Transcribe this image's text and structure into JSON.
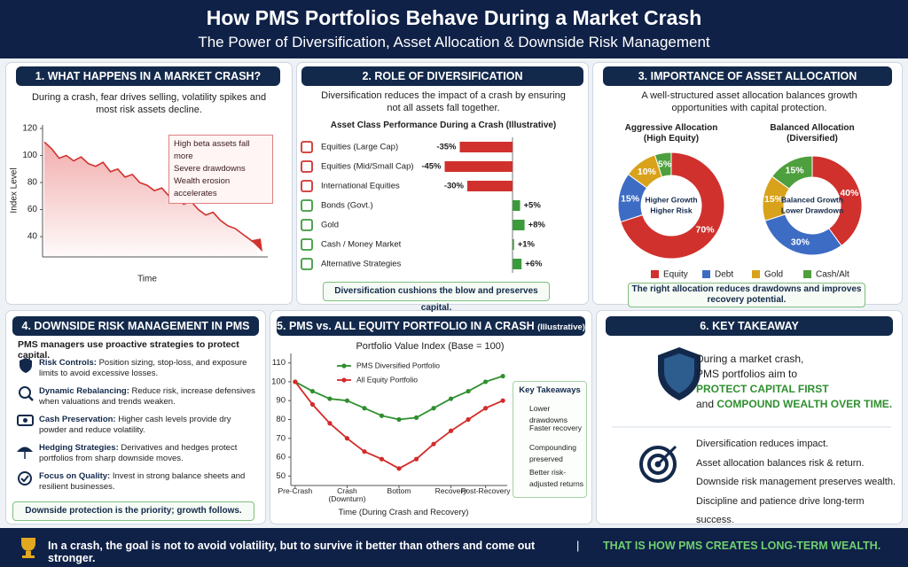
{
  "header": {
    "title": "How PMS Portfolios Behave During a Market Crash",
    "subtitle": "The Power of Diversification, Asset Allocation & Downside Risk Management"
  },
  "panels": [
    {
      "heading": "1. WHAT HAPPENS IN A MARKET CRASH?",
      "text": "During a crash, fear drives selling, volatility spikes and most risk assets decline.",
      "callout": [
        "High beta assets fall more",
        "Severe drawdowns",
        "Wealth erosion accelerates"
      ]
    },
    {
      "heading": "2. ROLE OF DIVERSIFICATION",
      "text": "Diversification reduces the impact of a crash by ensuring not all assets fall together.",
      "footer": "Diversification cushions the blow and preserves capital."
    },
    {
      "heading": "3. IMPORTANCE OF ASSET ALLOCATION",
      "text": "A well-structured asset allocation balances growth opportunities with capital protection.",
      "footer": "The right allocation reduces drawdowns and improves recovery potential."
    },
    {
      "heading": "4. DOWNSIDE RISK MANAGEMENT IN PMS",
      "text": "PMS managers use proactive strategies to protect capital.",
      "items": [
        {
          "title": "Risk Controls:",
          "text": "Position sizing, stop-loss, and exposure limits to avoid excessive losses."
        },
        {
          "title": "Dynamic Rebalancing:",
          "text": "Reduce risk, increase defensives when valuations and trends weaken."
        },
        {
          "title": "Cash Preservation:",
          "text": "Higher cash levels provide dry powder and reduce volatility."
        },
        {
          "title": "Hedging Strategies:",
          "text": "Derivatives and hedges protect portfolios from sharp downside moves."
        },
        {
          "title": "Focus on Quality:",
          "text": "Invest in strong balance sheets and resilient businesses."
        }
      ],
      "footer": "Downside protection is the priority; growth follows."
    },
    {
      "heading": "5. PMS vs. ALL EQUITY PORTFOLIO IN A CRASH",
      "note": "(Illustrative)",
      "box_title": "Key Takeaways",
      "box_items": [
        "Lower drawdowns",
        "Faster recovery",
        "Compounding preserved",
        "Better risk-adjusted returns"
      ]
    },
    {
      "heading": "6. KEY TAKEAWAY",
      "lines": [
        "During a market crash,",
        "PMS portfolios aim to"
      ],
      "highlight_1": "PROTECT CAPITAL FIRST",
      "connector": "and",
      "highlight_2": "COMPOUND WEALTH OVER TIME.",
      "points": [
        "Diversification reduces impact.",
        "Asset allocation balances risk & return.",
        "Downside risk management preserves wealth.",
        "Discipline and patience drive long-term success."
      ]
    }
  ],
  "footer": {
    "text": "In a crash, the goal is not to avoid volatility, but to survive it better than others and come out stronger.",
    "separator": "|",
    "tagline": "THAT IS HOW PMS CREATES LONG-TERM WEALTH."
  },
  "chart_data": [
    {
      "type": "line",
      "ylabel": "Index Level",
      "xlabel": "Time",
      "color": "#d0312d",
      "ylim": [
        25,
        120
      ],
      "yticks": [
        40,
        60,
        80,
        100,
        120
      ],
      "values": [
        110,
        105,
        98,
        100,
        96,
        99,
        94,
        92,
        95,
        88,
        90,
        84,
        86,
        80,
        78,
        74,
        76,
        70,
        68,
        64,
        66,
        60,
        56,
        58,
        52,
        48,
        46,
        42,
        38,
        34
      ]
    },
    {
      "type": "hbar",
      "title": "Asset Class Performance During a Crash (Illustrative)",
      "categories": [
        "Equities (Large Cap)",
        "Equities (Mid/Small Cap)",
        "International Equities",
        "Bonds (Govt.)",
        "Gold",
        "Cash / Money Market",
        "Alternative Strategies"
      ],
      "values": [
        -35,
        -45,
        -30,
        5,
        8,
        1,
        6
      ],
      "value_labels": [
        "-35%",
        "-45%",
        "-30%",
        "+5%",
        "+8%",
        "+1%",
        "+6%"
      ],
      "colors": [
        "#d0312d",
        "#d0312d",
        "#d0312d",
        "#3c9a3c",
        "#3c9a3c",
        "#3c9a3c",
        "#3c9a3c"
      ],
      "xlim": [
        -50,
        10
      ]
    },
    {
      "type": "donut",
      "title": "Aggressive Allocation",
      "subtitle": "(High Equity)",
      "center_label": [
        "Higher Growth",
        "Higher Risk"
      ],
      "categories": [
        "Equity",
        "Debt",
        "Gold",
        "Cash/Alt"
      ],
      "values": [
        70,
        15,
        10,
        5
      ],
      "value_labels": [
        "70%",
        "15%",
        "10%",
        "5%"
      ],
      "colors": [
        "#d0312d",
        "#3d6cc4",
        "#d9a21b",
        "#4e9f3d"
      ]
    },
    {
      "type": "donut",
      "title": "Balanced Allocation",
      "subtitle": "(Diversified)",
      "center_label": [
        "Balanced Growth",
        "Lower Drawdown"
      ],
      "categories": [
        "Equity",
        "Debt",
        "Gold",
        "Cash/Alt"
      ],
      "values": [
        40,
        30,
        15,
        15
      ],
      "value_labels": [
        "40%",
        "30%",
        "15%",
        "15%"
      ],
      "colors": [
        "#d0312d",
        "#3d6cc4",
        "#d9a21b",
        "#4e9f3d"
      ]
    },
    {
      "type": "line",
      "title": "Portfolio Value Index (Base = 100)",
      "xlabel": "Time (During Crash and Recovery)",
      "x": [
        0,
        1,
        2,
        3,
        4,
        5,
        6,
        7,
        8,
        9,
        10,
        11,
        12
      ],
      "xlim": [
        -0.25,
        12.25
      ],
      "xticks": [
        {
          "value": 0,
          "label": "Pre-Crash"
        },
        {
          "value": 3,
          "label": "Crash (Downturn)"
        },
        {
          "value": 6,
          "label": "Bottom"
        },
        {
          "value": 9,
          "label": "Recovery"
        },
        {
          "value": 11,
          "label": "Post-Recovery"
        }
      ],
      "ylim": [
        45,
        115
      ],
      "yticks": [
        50,
        60,
        70,
        80,
        90,
        100,
        110
      ],
      "series": [
        {
          "name": "PMS Diversified Portfolio",
          "color": "#2f8f2f",
          "values": [
            100,
            95,
            91,
            90,
            86,
            82,
            80,
            81,
            86,
            91,
            95,
            100,
            103
          ]
        },
        {
          "name": "All Equity Portfolio",
          "color": "#d42a2a",
          "values": [
            100,
            88,
            78,
            70,
            63,
            59,
            54,
            59,
            67,
            74,
            80,
            86,
            90
          ]
        }
      ]
    }
  ]
}
